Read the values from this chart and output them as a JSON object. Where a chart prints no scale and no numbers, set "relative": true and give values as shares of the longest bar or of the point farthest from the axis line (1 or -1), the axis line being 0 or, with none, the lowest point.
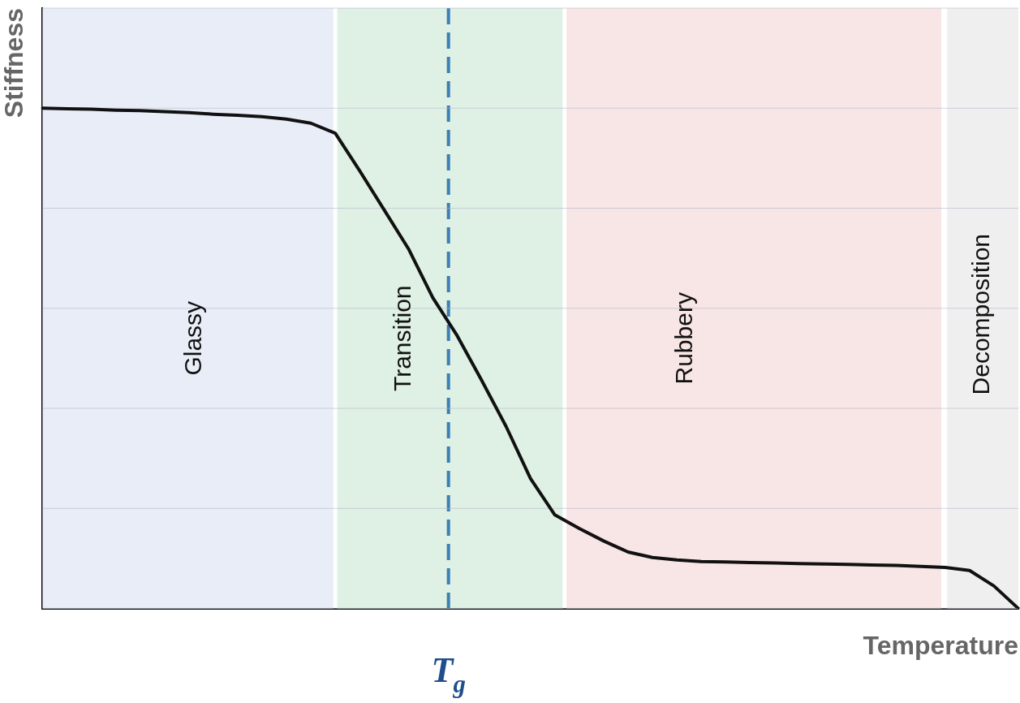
{
  "chart_data": {
    "type": "line",
    "xlabel": "Temperature",
    "ylabel": "Stiffness",
    "relative": true,
    "categories": [
      null,
      null,
      null,
      null,
      null,
      null,
      null,
      null,
      null,
      null,
      null,
      null,
      null,
      null,
      null,
      null,
      null,
      null,
      null,
      null,
      null,
      null,
      null,
      null,
      null,
      null,
      null,
      null,
      null,
      null,
      null,
      null,
      null,
      null,
      null,
      null,
      null,
      null,
      null,
      null,
      null
    ],
    "series": [
      {
        "color": "#111111",
        "values": [
          1,
          0.999,
          0.998,
          0.996,
          0.995,
          0.993,
          0.991,
          0.988,
          0.986,
          0.983,
          0.978,
          0.97,
          0.95,
          0.875,
          0.797,
          0.719,
          0.621,
          0.545,
          0.456,
          0.364,
          0.26,
          0.187,
          0.16,
          0.135,
          0.113,
          0.102,
          0.097,
          0.094,
          0.093,
          0.092,
          0.091,
          0.09,
          0.089,
          0.088,
          0.087,
          0.086,
          0.084,
          0.082,
          0.076,
          0.045,
          0
        ]
      }
    ],
    "annotations": [
      "Glassy",
      "Transition",
      "Rubbery",
      "Decomposition",
      "T$_{g}$"
    ],
    "grid": "y",
    "legend": false,
    "tick_labels": false,
    "marker": "none",
    "line_style": "solid"
  }
}
